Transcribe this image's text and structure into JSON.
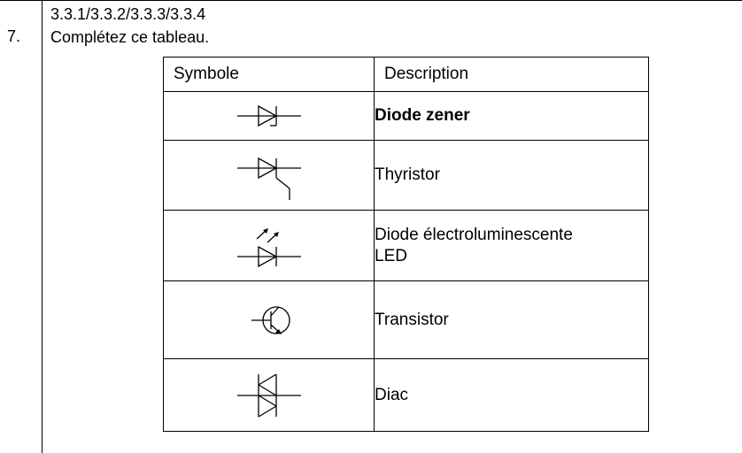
{
  "question": {
    "number": "7.",
    "reference": "3.3.1/3.3.2/3.3.3/3.3.4",
    "instruction": "Complétez ce tableau."
  },
  "table": {
    "headers": {
      "symbol": "Symbole",
      "description": "Description"
    },
    "rows": [
      {
        "symbol_icon": "zener-diode-symbol-icon",
        "description": "Diode zener",
        "bold": true
      },
      {
        "symbol_icon": "thyristor-symbol-icon",
        "description": "Thyristor",
        "bold": false
      },
      {
        "symbol_icon": "led-symbol-icon",
        "description_line1": "Diode électroluminescente",
        "description_line2": "LED",
        "bold": false
      },
      {
        "symbol_icon": "transistor-symbol-icon",
        "description": "Transistor",
        "bold": false
      },
      {
        "symbol_icon": "diac-symbol-icon",
        "description": "Diac",
        "bold": false
      }
    ]
  }
}
